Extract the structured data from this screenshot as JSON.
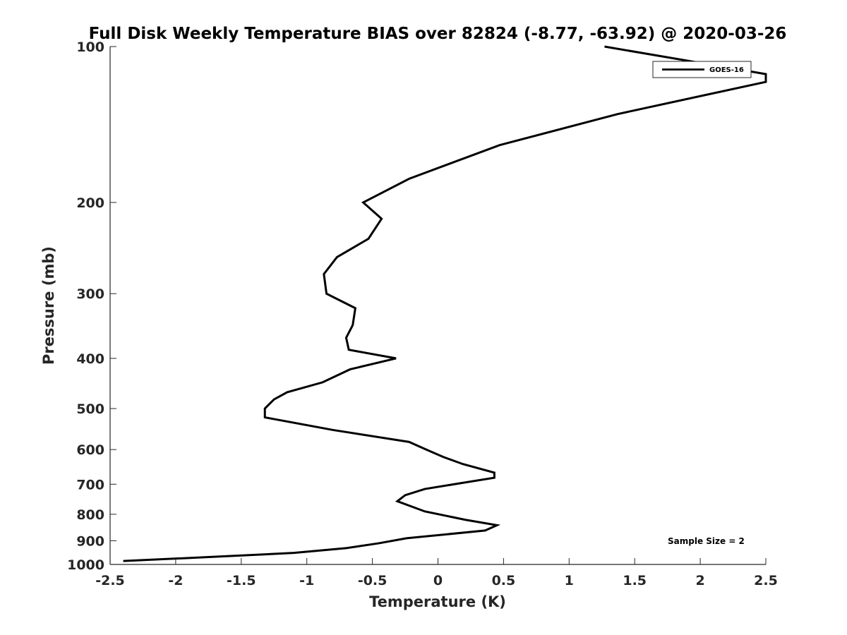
{
  "chart_data": {
    "type": "line",
    "title": "Full Disk Weekly Temperature BIAS over 82824 (-8.77, -63.92) @ 2020-03-26",
    "xlabel": "Temperature (K)",
    "ylabel": "Pressure (mb)",
    "xlim": [
      -2.5,
      2.5
    ],
    "ylim": [
      100,
      1000
    ],
    "y_scale": "log",
    "y_reversed": true,
    "xticks": [
      -2.5,
      -2,
      -1.5,
      -1,
      -0.5,
      0,
      0.5,
      1,
      1.5,
      2,
      2.5
    ],
    "xtick_labels": [
      "-2.5",
      "-2",
      "-1.5",
      "-1",
      "-0.5",
      "0",
      "0.5",
      "1",
      "1.5",
      "2",
      "2.5"
    ],
    "yticks": [
      100,
      200,
      300,
      400,
      500,
      600,
      700,
      800,
      900,
      1000
    ],
    "ytick_labels": [
      "100",
      "200",
      "300",
      "400",
      "500",
      "600",
      "700",
      "800",
      "900",
      "1000"
    ],
    "grid": false,
    "legend_position": "top-right",
    "annotation": "Sample Size = 2",
    "series": [
      {
        "name": "GOES-16",
        "color": "#000000",
        "points": [
          [
            1.27,
            100
          ],
          [
            2.5,
            113
          ],
          [
            2.5,
            117
          ],
          [
            1.37,
            135
          ],
          [
            0.47,
            155
          ],
          [
            -0.22,
            180
          ],
          [
            -0.57,
            200
          ],
          [
            -0.43,
            215
          ],
          [
            -0.53,
            235
          ],
          [
            -0.77,
            255
          ],
          [
            -0.87,
            275
          ],
          [
            -0.85,
            300
          ],
          [
            -0.63,
            320
          ],
          [
            -0.65,
            345
          ],
          [
            -0.7,
            365
          ],
          [
            -0.68,
            385
          ],
          [
            -0.32,
            400
          ],
          [
            -0.67,
            420
          ],
          [
            -0.88,
            445
          ],
          [
            -1.15,
            465
          ],
          [
            -1.25,
            480
          ],
          [
            -1.32,
            500
          ],
          [
            -1.32,
            520
          ],
          [
            -0.8,
            550
          ],
          [
            -0.22,
            580
          ],
          [
            -0.09,
            600
          ],
          [
            0.04,
            620
          ],
          [
            0.19,
            640
          ],
          [
            0.43,
            665
          ],
          [
            0.43,
            680
          ],
          [
            0.2,
            695
          ],
          [
            -0.1,
            715
          ],
          [
            -0.25,
            735
          ],
          [
            -0.31,
            755
          ],
          [
            -0.1,
            790
          ],
          [
            0.21,
            820
          ],
          [
            0.45,
            840
          ],
          [
            0.36,
            860
          ],
          [
            -0.24,
            890
          ],
          [
            -0.45,
            910
          ],
          [
            -0.7,
            930
          ],
          [
            -1.1,
            950
          ],
          [
            -1.65,
            965
          ],
          [
            -2.4,
            985
          ]
        ]
      }
    ]
  }
}
